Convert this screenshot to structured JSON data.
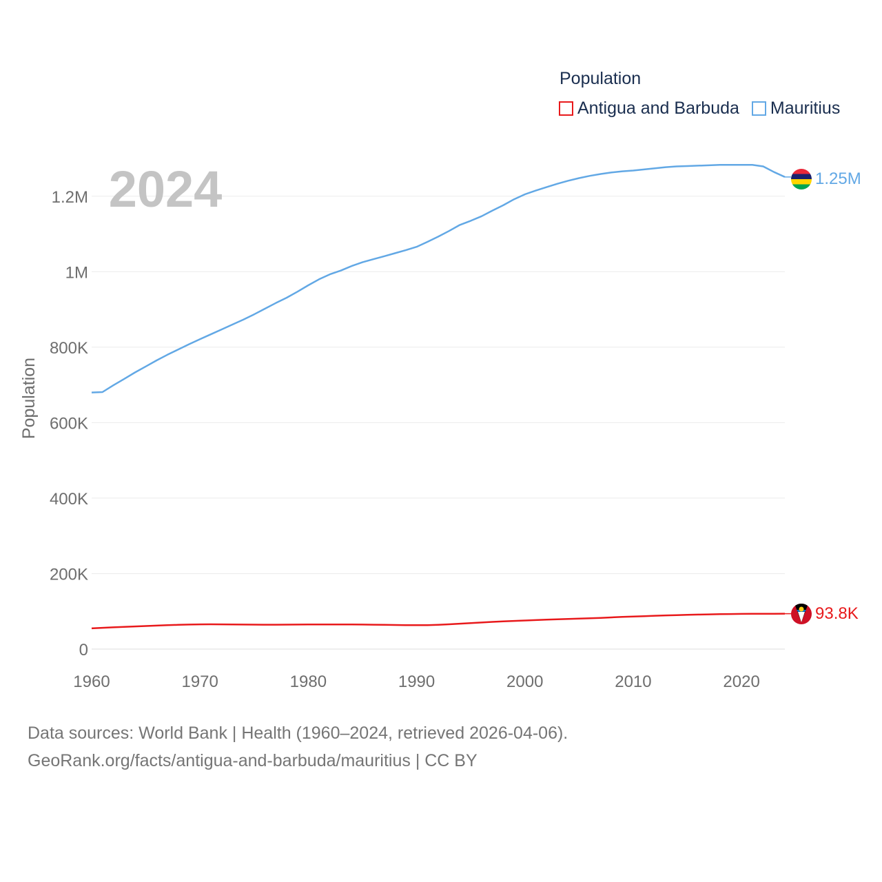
{
  "legend": {
    "title": "Population",
    "items": [
      {
        "label": "Antigua and Barbuda",
        "color": "#e8191b"
      },
      {
        "label": "Mauritius",
        "color": "#62a8e5"
      }
    ]
  },
  "year_label": "2024",
  "footer": {
    "line1": "Data sources: World Bank | Health (1960–2024, retrieved 2026-04-06).",
    "line2": "GeoRank.org/facts/antigua-and-barbuda/mauritius | CC BY"
  },
  "chart_data": {
    "type": "line",
    "title": "Population",
    "xlabel": "",
    "ylabel": "Population",
    "xlim": [
      1960,
      2024
    ],
    "ylim": [
      0,
      1300000
    ],
    "x_ticks": [
      1960,
      1970,
      1980,
      1990,
      2000,
      2010,
      2020
    ],
    "x_tick_labels": [
      "1960",
      "1970",
      "1980",
      "1990",
      "2000",
      "2010",
      "2020"
    ],
    "y_ticks": [
      0,
      200000,
      400000,
      600000,
      800000,
      1000000,
      1200000
    ],
    "y_tick_labels": [
      "0",
      "200K",
      "400K",
      "600K",
      "800K",
      "1M",
      "1.2M"
    ],
    "grid": true,
    "legend_position": "top-right",
    "x": [
      1960,
      1961,
      1962,
      1963,
      1964,
      1965,
      1966,
      1967,
      1968,
      1969,
      1970,
      1971,
      1972,
      1973,
      1974,
      1975,
      1976,
      1977,
      1978,
      1979,
      1980,
      1981,
      1982,
      1983,
      1984,
      1985,
      1986,
      1987,
      1988,
      1989,
      1990,
      1991,
      1992,
      1993,
      1994,
      1995,
      1996,
      1997,
      1998,
      1999,
      2000,
      2001,
      2002,
      2003,
      2004,
      2005,
      2006,
      2007,
      2008,
      2009,
      2010,
      2011,
      2012,
      2013,
      2014,
      2015,
      2016,
      2017,
      2018,
      2019,
      2020,
      2021,
      2022,
      2023,
      2024
    ],
    "series": [
      {
        "name": "Antigua and Barbuda",
        "color": "#e8191b",
        "end_label": "93.8K",
        "values": [
          55000,
          56500,
          57700,
          58800,
          60000,
          61200,
          62300,
          63400,
          64300,
          65000,
          65500,
          65700,
          65600,
          65300,
          65000,
          64800,
          64700,
          64700,
          64800,
          65000,
          65200,
          65300,
          65300,
          65300,
          65200,
          65000,
          64700,
          64300,
          63900,
          63500,
          63300,
          63500,
          64400,
          65800,
          67300,
          68900,
          70500,
          72100,
          73500,
          74700,
          75800,
          76900,
          78000,
          78900,
          79800,
          80700,
          81700,
          82700,
          84000,
          85300,
          86400,
          87300,
          88300,
          89200,
          90000,
          90800,
          91500,
          92100,
          92600,
          93000,
          93300,
          93500,
          93600,
          93700,
          93800
        ]
      },
      {
        "name": "Mauritius",
        "color": "#62a8e5",
        "end_label": "1.25M",
        "values": [
          680000,
          681000,
          699000,
          716000,
          733000,
          749000,
          765000,
          780000,
          794000,
          808000,
          821000,
          834000,
          847000,
          860000,
          873000,
          887000,
          902000,
          917000,
          931000,
          947000,
          964000,
          980000,
          993000,
          1003000,
          1015000,
          1025000,
          1033000,
          1041000,
          1049000,
          1057000,
          1066000,
          1079000,
          1093000,
          1108000,
          1124000,
          1135000,
          1147000,
          1162000,
          1176000,
          1192000,
          1205000,
          1215000,
          1224000,
          1233000,
          1241000,
          1248000,
          1254000,
          1259000,
          1263000,
          1266000,
          1268000,
          1271000,
          1274000,
          1277000,
          1279000,
          1280000,
          1281000,
          1282000,
          1283000,
          1283000,
          1283000,
          1283000,
          1279000,
          1264000,
          1251000
        ]
      }
    ]
  }
}
